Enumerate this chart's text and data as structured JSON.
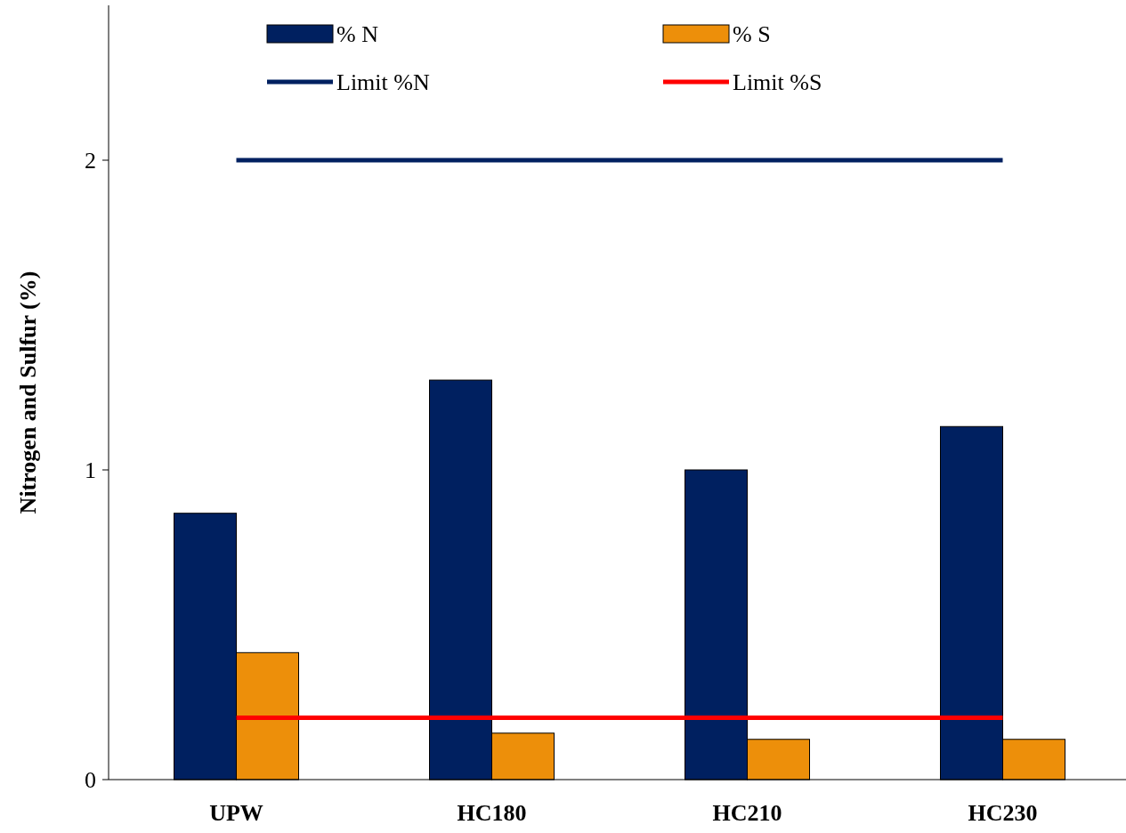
{
  "chart_data": {
    "type": "bar",
    "ylabel": "Nitrogen and Sulfur (%)",
    "categories": [
      "UPW",
      "HC180",
      "HC210",
      "HC230"
    ],
    "series": [
      {
        "name": "% N",
        "color": "#002060",
        "values": [
          0.86,
          1.29,
          1.0,
          1.14
        ]
      },
      {
        "name": "% S",
        "color": "#ed8f0a",
        "values": [
          0.41,
          0.15,
          0.13,
          0.13
        ]
      },
      {
        "name": "Limit %N",
        "type": "line",
        "color": "#002060",
        "values": [
          2,
          2,
          2,
          2
        ]
      },
      {
        "name": "Limit %S",
        "type": "line",
        "color": "#ff0000",
        "values": [
          0.2,
          0.2,
          0.2,
          0.2
        ]
      }
    ],
    "ylim": [
      0,
      2.5
    ],
    "yticks": [
      0,
      1,
      2
    ],
    "grid": false,
    "legend": "top"
  }
}
